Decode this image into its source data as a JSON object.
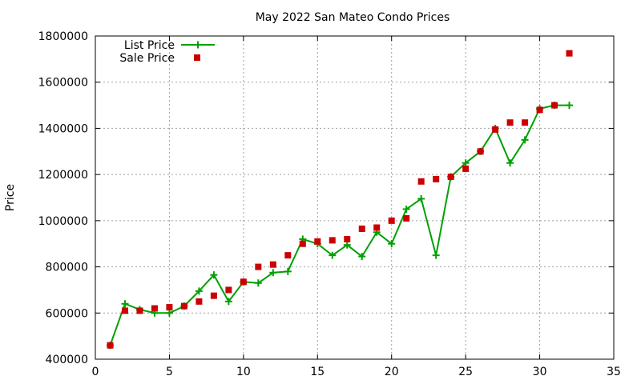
{
  "chart_data": {
    "type": "line",
    "title": "May 2022 San Mateo Condo Prices",
    "xlabel": "",
    "ylabel": "Price",
    "xlim": [
      0,
      35
    ],
    "ylim": [
      400000,
      1800000
    ],
    "xticks": [
      0,
      5,
      10,
      15,
      20,
      25,
      30,
      35
    ],
    "yticks": [
      400000,
      600000,
      800000,
      1000000,
      1200000,
      1400000,
      1600000,
      1800000
    ],
    "grid": true,
    "legend_position": "top-left",
    "series": [
      {
        "name": "List Price",
        "style": "linespoints",
        "color": "#00a000",
        "marker": "plus",
        "x": [
          1,
          2,
          3,
          4,
          5,
          6,
          7,
          8,
          9,
          10,
          11,
          12,
          13,
          14,
          15,
          16,
          17,
          18,
          19,
          20,
          21,
          22,
          23,
          24,
          25,
          26,
          27,
          28,
          29,
          30,
          31,
          32
        ],
        "y": [
          460000,
          640000,
          615000,
          600000,
          600000,
          630000,
          695000,
          765000,
          650000,
          735000,
          730000,
          775000,
          780000,
          920000,
          900000,
          850000,
          895000,
          845000,
          950000,
          900000,
          1050000,
          1095000,
          850000,
          1190000,
          1250000,
          1300000,
          1400000,
          1250000,
          1350000,
          1485000,
          1500000,
          1500000
        ]
      },
      {
        "name": "Sale Price",
        "style": "points",
        "color": "#cc0000",
        "marker": "square",
        "x": [
          1,
          2,
          3,
          4,
          5,
          6,
          7,
          8,
          9,
          10,
          11,
          12,
          13,
          14,
          15,
          16,
          17,
          18,
          19,
          20,
          21,
          22,
          23,
          24,
          25,
          26,
          27,
          28,
          29,
          30,
          31,
          32
        ],
        "y": [
          460000,
          610000,
          610000,
          620000,
          625000,
          630000,
          650000,
          675000,
          700000,
          735000,
          800000,
          810000,
          850000,
          900000,
          910000,
          915000,
          920000,
          965000,
          970000,
          1000000,
          1010000,
          1170000,
          1180000,
          1190000,
          1225000,
          1300000,
          1395000,
          1425000,
          1425000,
          1480000,
          1500000,
          1725000
        ]
      }
    ]
  }
}
